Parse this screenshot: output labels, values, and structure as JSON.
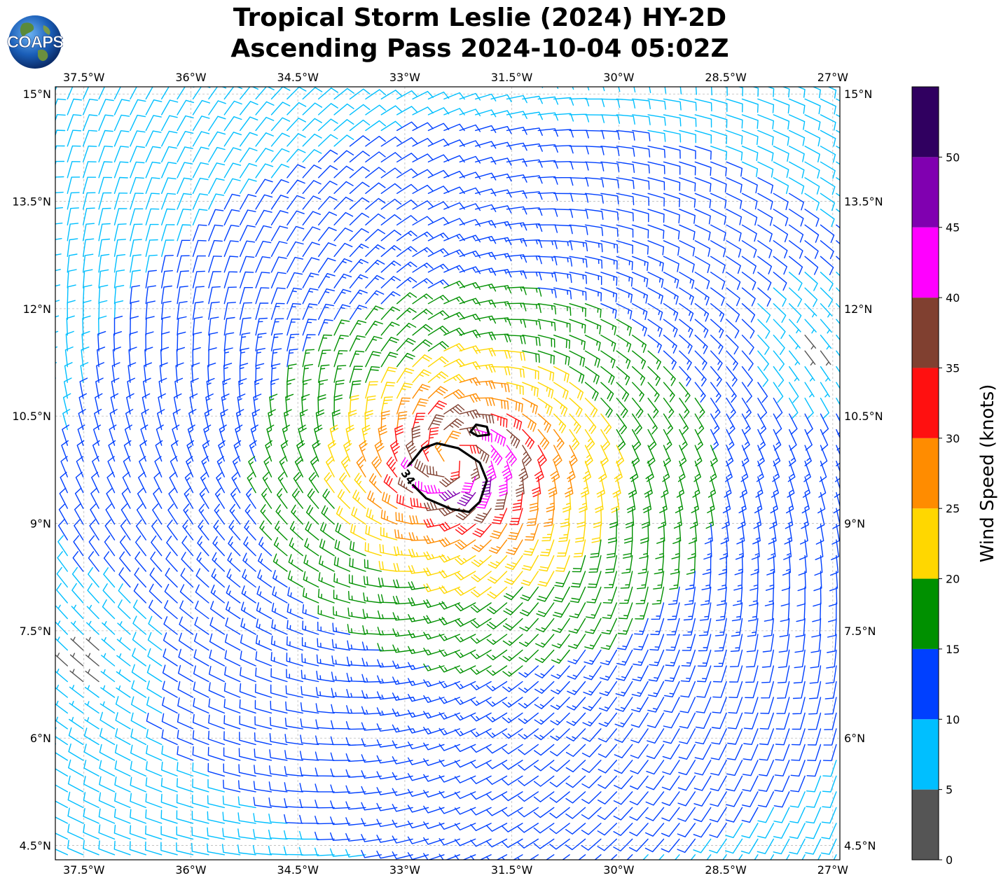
{
  "title": {
    "line1": "Tropical Storm Leslie (2024) HY-2D",
    "line2": "Ascending Pass 2024-10-04 05:02Z"
  },
  "logo": {
    "text": "COAPS"
  },
  "map": {
    "lon_range": [
      -37.9,
      -26.9
    ],
    "lat_range": [
      4.3,
      15.1
    ],
    "lon_ticks": [
      {
        "value": -37.5,
        "label": "37.5°W"
      },
      {
        "value": -36.0,
        "label": "36°W"
      },
      {
        "value": -34.5,
        "label": "34.5°W"
      },
      {
        "value": -33.0,
        "label": "33°W"
      },
      {
        "value": -31.5,
        "label": "31.5°W"
      },
      {
        "value": -30.0,
        "label": "30°W"
      },
      {
        "value": -28.5,
        "label": "28.5°W"
      },
      {
        "value": -27.0,
        "label": "27°W"
      }
    ],
    "lat_ticks": [
      {
        "value": 15.0,
        "label": "15°N"
      },
      {
        "value": 13.5,
        "label": "13.5°N"
      },
      {
        "value": 12.0,
        "label": "12°N"
      },
      {
        "value": 10.5,
        "label": "10.5°N"
      },
      {
        "value": 9.0,
        "label": "9°N"
      },
      {
        "value": 7.5,
        "label": "7.5°N"
      },
      {
        "value": 6.0,
        "label": "6°N"
      },
      {
        "value": 4.5,
        "label": "4.5°N"
      }
    ],
    "gridlines": true,
    "storm_center": {
      "lon": -32.3,
      "lat": 9.9
    },
    "contour_label": "34",
    "contour_lonlat": [
      [
        -32.75,
        10.05
      ],
      [
        -32.55,
        10.12
      ],
      [
        -32.25,
        10.05
      ],
      [
        -31.95,
        9.85
      ],
      [
        -31.85,
        9.6
      ],
      [
        -31.95,
        9.3
      ],
      [
        -32.1,
        9.16
      ],
      [
        -32.35,
        9.2
      ],
      [
        -32.7,
        9.35
      ],
      [
        -32.9,
        9.55
      ],
      [
        -32.95,
        9.8
      ]
    ],
    "contour_small_lonlat": [
      [
        -32.0,
        10.38
      ],
      [
        -31.85,
        10.35
      ],
      [
        -31.82,
        10.24
      ],
      [
        -31.98,
        10.22
      ],
      [
        -32.08,
        10.28
      ]
    ]
  },
  "colorbar": {
    "label": "Wind Speed (knots)",
    "bins": [
      {
        "from": 0,
        "to": 5,
        "color": "#555555"
      },
      {
        "from": 5,
        "to": 10,
        "color": "#00bfff"
      },
      {
        "from": 10,
        "to": 15,
        "color": "#0040ff"
      },
      {
        "from": 15,
        "to": 20,
        "color": "#009000"
      },
      {
        "from": 20,
        "to": 25,
        "color": "#ffd700"
      },
      {
        "from": 25,
        "to": 30,
        "color": "#ff8c00"
      },
      {
        "from": 30,
        "to": 35,
        "color": "#ff1010"
      },
      {
        "from": 35,
        "to": 40,
        "color": "#804030"
      },
      {
        "from": 40,
        "to": 45,
        "color": "#ff00ff"
      },
      {
        "from": 45,
        "to": 50,
        "color": "#8000b0"
      },
      {
        "from": 50,
        "to": 55,
        "color": "#300060"
      }
    ],
    "tick_labels": [
      "0",
      "5",
      "10",
      "15",
      "20",
      "25",
      "30",
      "35",
      "40",
      "45",
      "50"
    ]
  },
  "chart_data": {
    "type": "map-wind-barbs",
    "title": "Tropical Storm Leslie (2024) HY-2D Ascending Pass 2024-10-04 05:02Z",
    "colorbar_label": "Wind Speed (knots)",
    "wind_field": {
      "center": {
        "lon": -32.3,
        "lat": 9.9
      },
      "max_wind_kt": 42,
      "radius_of_max_wind_deg": 0.6,
      "rotation": "cyclonic (counter-clockwise)",
      "calm_regions": [
        {
          "lon": -37.4,
          "lat": 7.0
        },
        {
          "lon": -27.3,
          "lat": 11.5
        }
      ],
      "barb_spacing_deg": 0.22
    }
  }
}
